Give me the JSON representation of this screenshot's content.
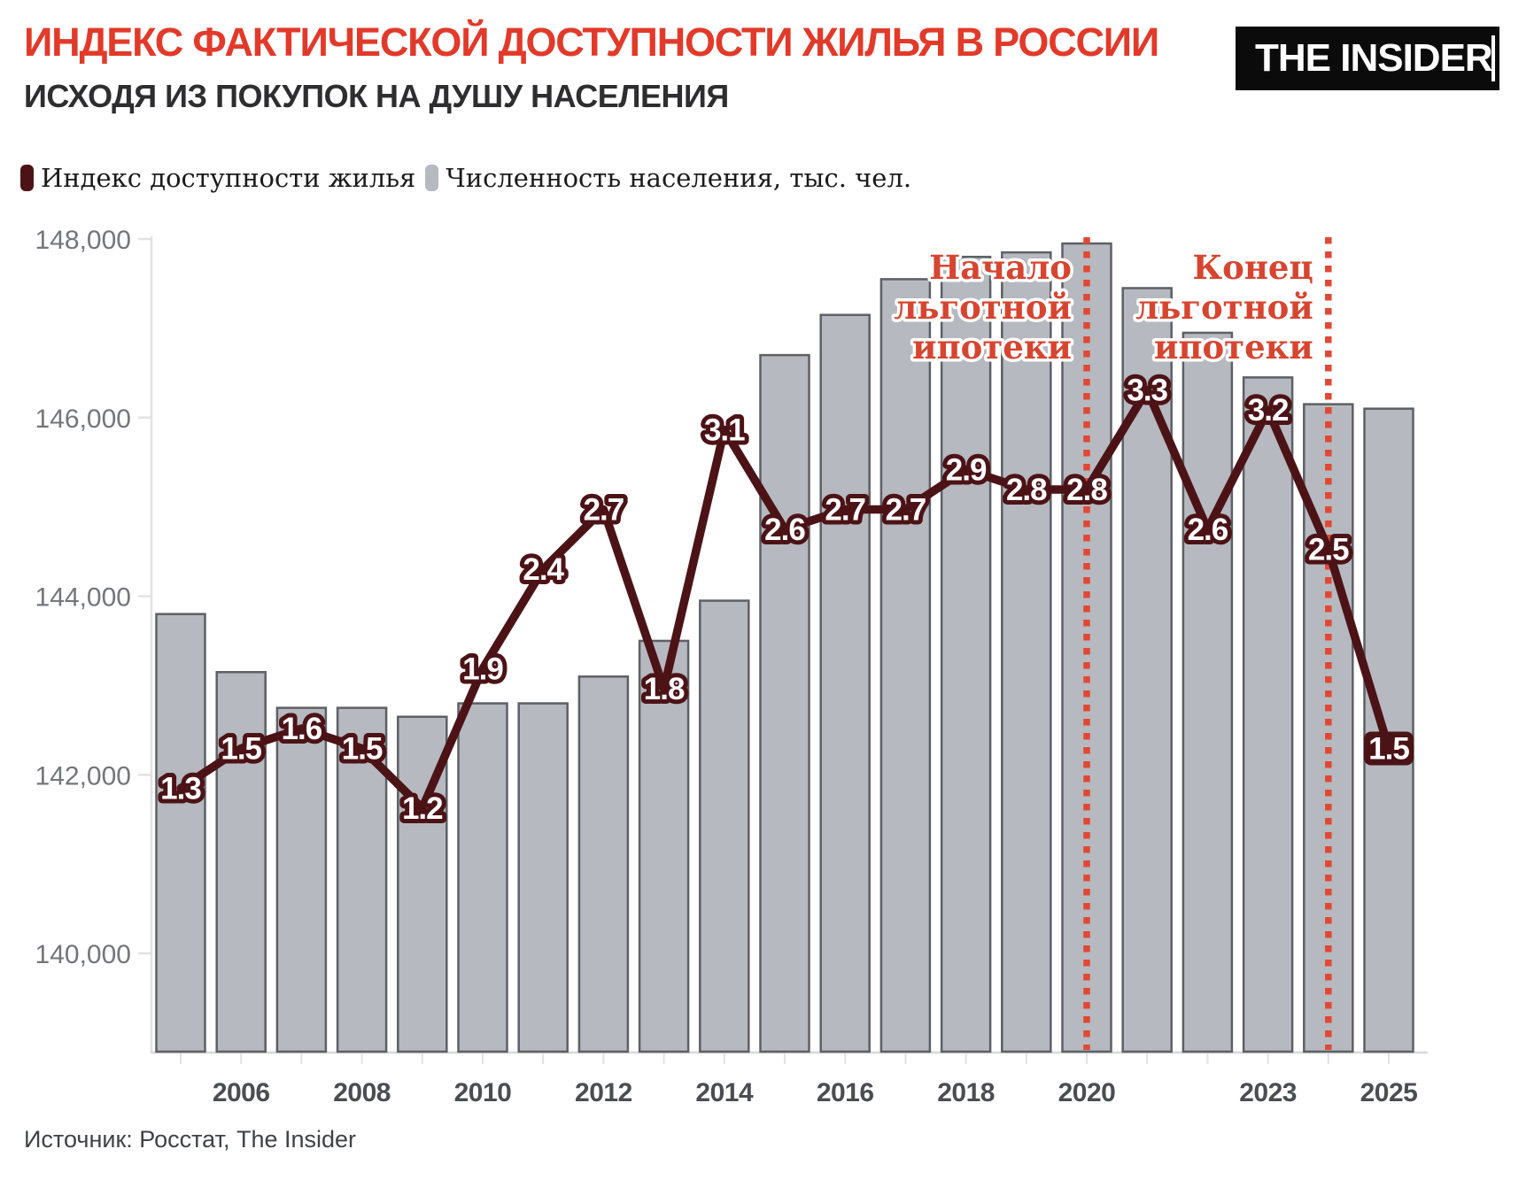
{
  "header": {
    "title": "ИНДЕКС ФАКТИЧЕСКОЙ ДОСТУПНОСТИ ЖИЛЬЯ В РОССИИ",
    "subtitle": "ИСХОДЯ ИЗ ПОКУПОК НА ДУШУ НАСЕЛЕНИЯ",
    "logo_text": "THE INSIDER"
  },
  "legend": [
    {
      "label": "Индекс доступности жилья",
      "color": "#4c1317"
    },
    {
      "label": "Численность населения, тыс. чел.",
      "color": "#b6b9bf"
    }
  ],
  "source": "Источник: Росстат, The Insider",
  "colors": {
    "title_red": "#e23a2a",
    "annotation_red": "#d64530",
    "dotted_red": "#e14834",
    "line_maroon": "#4c1317",
    "bar_fill": "#b6b9bf",
    "bar_border": "#5d6065",
    "axis_gray": "#e2e2e5",
    "baseline_gray": "#d8d8db",
    "y_label_gray": "#73767b",
    "x_label_dark": "#4a4d52",
    "label_text_white": "#ffffff"
  },
  "chart_data": {
    "type": "bar+line combo",
    "x": [
      2005,
      2006,
      2007,
      2008,
      2009,
      2010,
      2011,
      2012,
      2013,
      2014,
      2015,
      2016,
      2017,
      2018,
      2019,
      2020,
      2021,
      2022,
      2023,
      2024,
      2025
    ],
    "series": [
      {
        "name": "Численность населения, тыс. чел.",
        "type": "bar",
        "values": [
          143800,
          143150,
          142750,
          142750,
          142650,
          142800,
          142800,
          143100,
          143500,
          143950,
          146700,
          147150,
          147550,
          147800,
          147850,
          147950,
          147450,
          146950,
          146450,
          146150,
          146100
        ]
      },
      {
        "name": "Индекс доступности жилья",
        "type": "line",
        "values": [
          1.3,
          1.5,
          1.6,
          1.5,
          1.2,
          1.9,
          2.4,
          2.7,
          1.8,
          3.1,
          2.6,
          2.7,
          2.7,
          2.9,
          2.8,
          2.8,
          3.3,
          2.6,
          3.2,
          2.5,
          1.5
        ],
        "point_labels": [
          "1.3",
          "1.5",
          "1.6",
          "1.5",
          "1.2",
          "1.9",
          "2.4",
          "2.7",
          "1.8",
          "3.1",
          "2.6",
          "2.7",
          "2.7",
          "2.9",
          "2.8",
          "2.8",
          "3.3",
          "2.6",
          "3.2",
          "2.5",
          "1.5"
        ],
        "boxed_label_year": 2025
      }
    ],
    "x_axis": {
      "labeled_years": [
        2006,
        2008,
        2010,
        2012,
        2014,
        2016,
        2018,
        2020,
        2023,
        2025
      ],
      "labels": [
        "2006",
        "2008",
        "2010",
        "2012",
        "2014",
        "2016",
        "2018",
        "2020",
        "2023",
        "2025"
      ]
    },
    "y_axis": {
      "range": [
        138900,
        148100
      ],
      "grid": "off",
      "ticks": [
        {
          "value": 140000,
          "label": "140,000"
        },
        {
          "value": 142000,
          "label": "142,000"
        },
        {
          "value": 144000,
          "label": "144,000"
        },
        {
          "value": 146000,
          "label": "146,000"
        },
        {
          "value": 148000,
          "label": "148,000"
        }
      ]
    },
    "annotations": [
      {
        "year": 2020,
        "lines": [
          "Начало",
          "льготной",
          "ипотеки"
        ],
        "text": "Начало льготной ипотеки"
      },
      {
        "year": 2024,
        "lines": [
          "Конец",
          "льготной",
          "ипотеки"
        ],
        "text": "Конец льготной ипотеки"
      }
    ]
  }
}
